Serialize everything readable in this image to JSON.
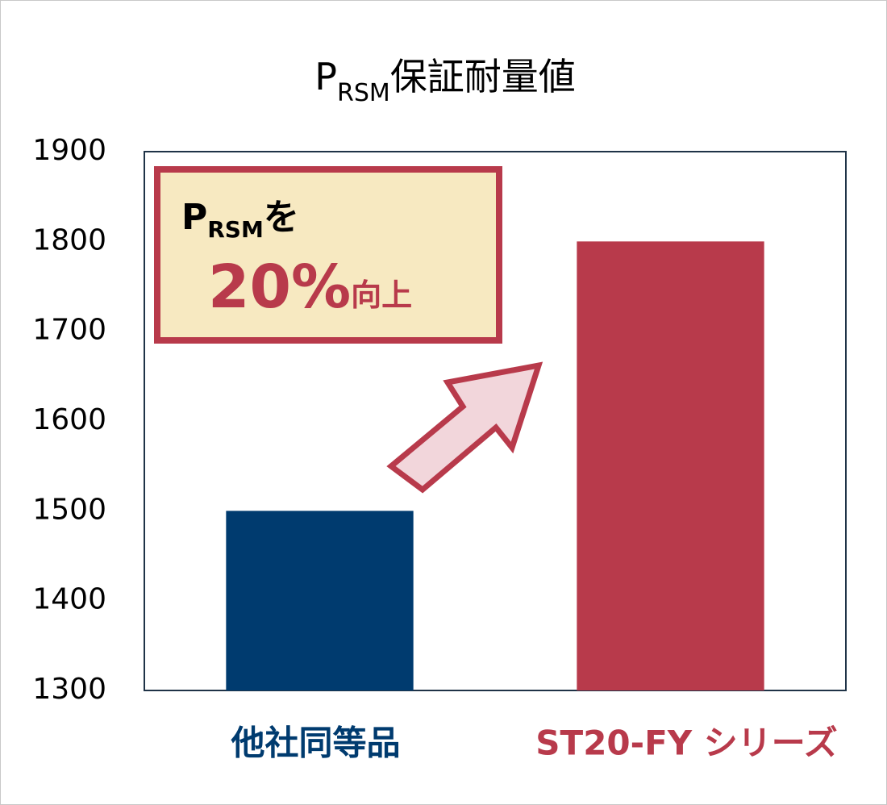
{
  "chart_data": {
    "type": "bar",
    "title": {
      "main": "P",
      "sub": "RSM",
      "rest": "保証耐量値"
    },
    "annotation": {
      "main": "P",
      "sub": "RSM",
      "particle": "を",
      "amount": "20%",
      "rest": "向上"
    },
    "categories": [
      "他社同等品",
      "ST20-FY シリーズ"
    ],
    "values": [
      1500,
      1800
    ],
    "colors": [
      "#003b6f",
      "#b83a4b"
    ],
    "ylim": [
      1300,
      1900
    ],
    "yticks": [
      1300,
      1400,
      1500,
      1600,
      1700,
      1800,
      1900
    ]
  }
}
